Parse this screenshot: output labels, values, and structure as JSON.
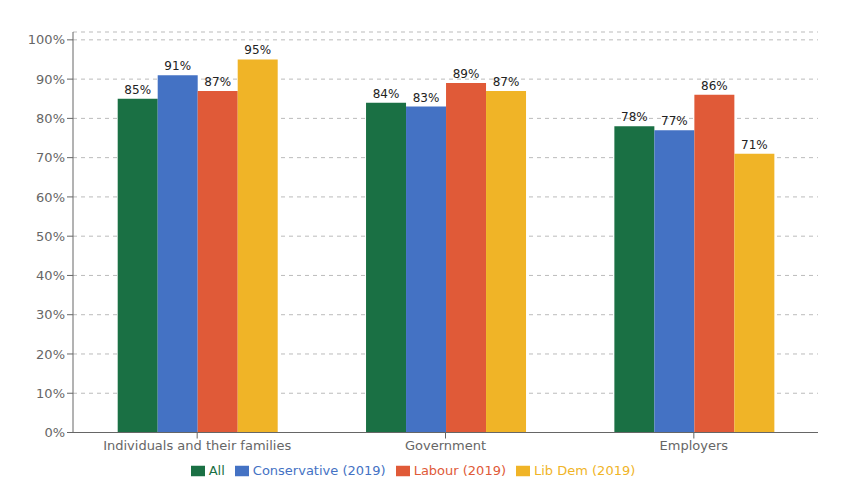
{
  "chart_data": {
    "type": "bar",
    "categories": [
      "Individuals and their families",
      "Government",
      "Employers"
    ],
    "series": [
      {
        "name": "All",
        "color": "#1a7044",
        "values": [
          85,
          84,
          78
        ],
        "value_labels": [
          "85%",
          "84%",
          "78%"
        ]
      },
      {
        "name": "Conservative (2019)",
        "color": "#4472c4",
        "values": [
          91,
          83,
          77
        ],
        "value_labels": [
          "91%",
          "83%",
          "77%"
        ]
      },
      {
        "name": "Labour (2019)",
        "color": "#e05a38",
        "values": [
          87,
          89,
          86
        ],
        "value_labels": [
          "87%",
          "89%",
          "86%"
        ]
      },
      {
        "name": "Lib Dem (2019)",
        "color": "#f0b427",
        "values": [
          95,
          87,
          71
        ],
        "value_labels": [
          "95%",
          "87%",
          "71%"
        ]
      }
    ],
    "ylim": [
      0,
      102
    ],
    "yticks": [
      {
        "value": 0,
        "label": "0%"
      },
      {
        "value": 10,
        "label": "10%"
      },
      {
        "value": 20,
        "label": "20%"
      },
      {
        "value": 30,
        "label": "30%"
      },
      {
        "value": 40,
        "label": "40%"
      },
      {
        "value": 50,
        "label": "50%"
      },
      {
        "value": 60,
        "label": "60%"
      },
      {
        "value": 70,
        "label": "70%"
      },
      {
        "value": 80,
        "label": "80%"
      },
      {
        "value": 90,
        "label": "90%"
      },
      {
        "value": 100,
        "label": "100%"
      }
    ],
    "grid": true,
    "legend": "bottom",
    "data_labels": true
  }
}
